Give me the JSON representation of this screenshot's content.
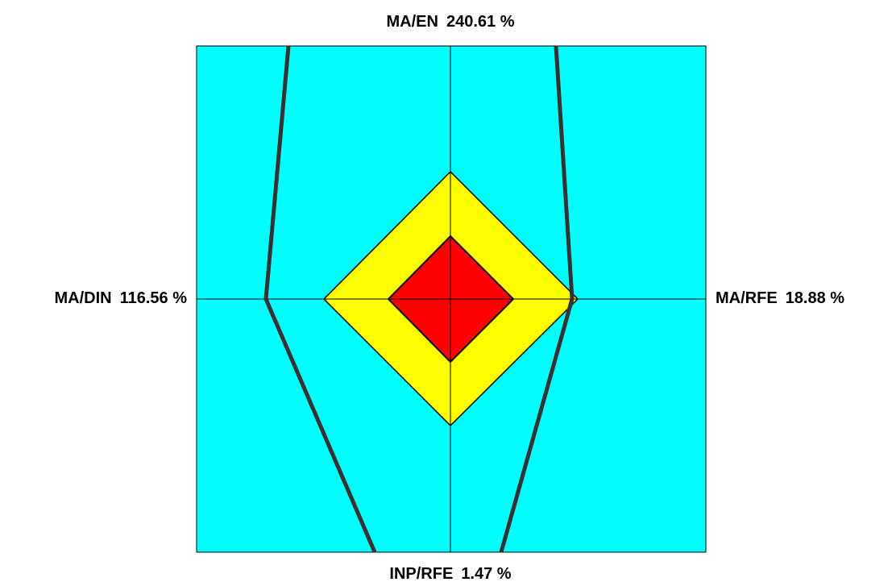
{
  "axes": [
    {
      "name": "MA/EN",
      "value": "240.61 %"
    },
    {
      "name": "MA/RFE",
      "value": "18.88 %"
    },
    {
      "name": "INP/RFE",
      "value": "1.47 %"
    },
    {
      "name": "MA/DIN",
      "value": "116.56 %"
    }
  ]
}
